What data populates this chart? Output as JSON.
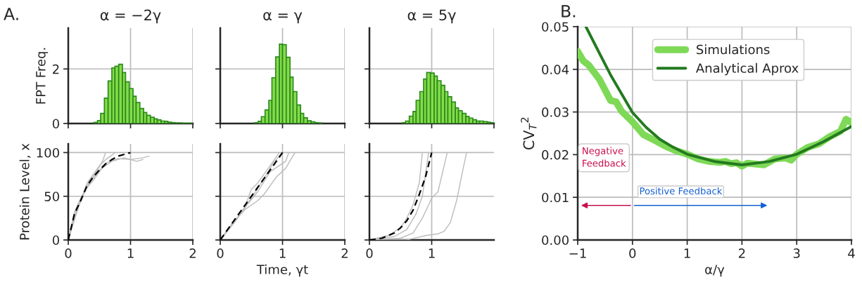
{
  "chart_data": [
    {
      "type": "histogram",
      "title": "α = −2γ",
      "ylabel": "FPT Freq.",
      "annotations": [
        "A."
      ],
      "color": "#86dc48",
      "xlim": [
        0,
        2
      ],
      "xticks": [
        0,
        1,
        2
      ],
      "ylim": [
        0,
        3.5
      ],
      "yticks": [
        0,
        2
      ],
      "grid": true,
      "tick_labels": "y",
      "bins": [
        0.41,
        0.47,
        0.52,
        0.58,
        0.64,
        0.7,
        0.75,
        0.81,
        0.87,
        0.92,
        0.98,
        1.04,
        1.09,
        1.15,
        1.21,
        1.26,
        1.32,
        1.38,
        1.43,
        1.49,
        1.55,
        1.6,
        1.66,
        1.72,
        1.77,
        1.83,
        1.89,
        1.94,
        2.0
      ],
      "values": [
        0.04,
        0.11,
        0.37,
        0.93,
        1.56,
        2.04,
        2.1,
        2.17,
        1.87,
        1.53,
        1.28,
        1.0,
        0.77,
        0.55,
        0.4,
        0.3,
        0.23,
        0.17,
        0.13,
        0.09,
        0.08,
        0.05,
        0.03,
        0.02,
        0.02,
        0.01,
        0.01,
        0.01
      ]
    },
    {
      "type": "histogram",
      "title": "α = γ",
      "color": "#86dc48",
      "xlim": [
        0,
        2
      ],
      "xticks": [
        0,
        1,
        2
      ],
      "ylim": [
        0,
        3.5
      ],
      "yticks": [
        0,
        2
      ],
      "grid": true,
      "tick_labels": false,
      "bins": [
        0.55,
        0.61,
        0.66,
        0.72,
        0.78,
        0.83,
        0.89,
        0.95,
        1.0,
        1.06,
        1.12,
        1.17,
        1.23,
        1.29,
        1.34,
        1.4,
        1.46,
        1.52,
        1.57,
        1.63
      ],
      "values": [
        0.03,
        0.08,
        0.25,
        0.5,
        0.85,
        1.68,
        2.44,
        2.91,
        2.89,
        2.43,
        1.7,
        1.17,
        0.68,
        0.37,
        0.21,
        0.1,
        0.06,
        0.03,
        0.02
      ]
    },
    {
      "type": "histogram",
      "title": "α = 5γ",
      "color": "#86dc48",
      "xlim": [
        0,
        2
      ],
      "xticks": [
        0,
        1,
        2
      ],
      "ylim": [
        0,
        3.5
      ],
      "yticks": [
        0,
        2
      ],
      "grid": true,
      "tick_labels": false,
      "bins": [
        0.53,
        0.58,
        0.64,
        0.7,
        0.75,
        0.81,
        0.87,
        0.92,
        0.98,
        1.04,
        1.09,
        1.15,
        1.21,
        1.26,
        1.32,
        1.38,
        1.43,
        1.49,
        1.55,
        1.6,
        1.66,
        1.72,
        1.77,
        1.83,
        1.89,
        1.94,
        2.0
      ],
      "values": [
        0.03,
        0.09,
        0.27,
        0.44,
        0.85,
        1.17,
        1.63,
        1.87,
        1.85,
        1.74,
        1.57,
        1.4,
        1.17,
        0.98,
        0.79,
        0.57,
        0.47,
        0.37,
        0.26,
        0.2,
        0.14,
        0.09,
        0.09,
        0.07,
        0.05,
        0.03
      ]
    },
    {
      "type": "line",
      "ylabel": "Protein Level, x",
      "xlim": [
        0,
        2
      ],
      "xticks": [
        0,
        1,
        2
      ],
      "ylim": [
        0,
        110
      ],
      "yticks": [
        0,
        50,
        100
      ],
      "grid": true,
      "series": [
        {
          "color": "#bbbbbb",
          "x": [
            0,
            0.1,
            0.2,
            0.3,
            0.4,
            0.5,
            0.6,
            0.7,
            0.75
          ],
          "values": [
            0,
            28,
            44,
            65,
            75,
            85,
            92,
            97,
            100
          ]
        },
        {
          "color": "#bbbbbb",
          "x": [
            0,
            0.1,
            0.2,
            0.3,
            0.4,
            0.5,
            0.6,
            0.8,
            1.0,
            1.2,
            1.3
          ],
          "values": [
            0,
            32,
            48,
            60,
            68,
            78,
            88,
            93,
            92,
            94,
            96
          ]
        },
        {
          "color": "#bbbbbb",
          "x": [
            0,
            0.15,
            0.3,
            0.45,
            0.55,
            0.6
          ],
          "values": [
            0,
            38,
            62,
            78,
            90,
            100
          ]
        },
        {
          "color": "#bbbbbb",
          "x": [
            0,
            0.2,
            0.35,
            0.5,
            0.7,
            0.9,
            1.1,
            1.2
          ],
          "values": [
            0,
            46,
            66,
            80,
            90,
            94,
            90,
            92
          ]
        },
        {
          "color": "#000000",
          "line_style": "dashed",
          "x": [
            0,
            0.1,
            0.2,
            0.3,
            0.4,
            0.5,
            0.6,
            0.7,
            0.8,
            0.9,
            1.0
          ],
          "values": [
            0,
            30,
            45,
            62,
            72,
            80,
            87,
            92,
            96,
            98,
            100
          ]
        }
      ]
    },
    {
      "type": "line",
      "xlabel": "Time, γt",
      "xlim": [
        0,
        2
      ],
      "xticks": [
        0,
        1,
        2
      ],
      "ylim": [
        0,
        110
      ],
      "yticks": [
        0,
        50,
        100
      ],
      "grid": true,
      "tick_labels": "x",
      "series": [
        {
          "color": "#bbbbbb",
          "x": [
            0,
            0.2,
            0.4,
            0.5,
            0.6,
            0.8,
            0.95
          ],
          "values": [
            0,
            18,
            38,
            58,
            65,
            85,
            100
          ]
        },
        {
          "color": "#bbbbbb",
          "x": [
            0,
            0.2,
            0.4,
            0.6,
            0.7,
            0.9,
            1.05,
            1.2
          ],
          "values": [
            0,
            20,
            35,
            45,
            52,
            72,
            82,
            100
          ]
        },
        {
          "color": "#bbbbbb",
          "x": [
            0,
            0.3,
            0.5,
            0.7,
            0.85,
            1.0
          ],
          "values": [
            0,
            28,
            48,
            70,
            88,
            100
          ]
        },
        {
          "color": "#bbbbbb",
          "x": [
            0,
            0.25,
            0.45,
            0.6,
            0.8,
            1.05,
            1.1
          ],
          "values": [
            0,
            22,
            42,
            55,
            78,
            90,
            100
          ]
        },
        {
          "color": "#000000",
          "line_style": "dashed",
          "x": [
            0,
            1
          ],
          "values": [
            0,
            100
          ]
        }
      ]
    },
    {
      "type": "line",
      "xlim": [
        0,
        2
      ],
      "xticks": [
        0,
        1
      ],
      "ylim": [
        0,
        110
      ],
      "yticks": [
        0,
        50,
        100
      ],
      "grid": true,
      "tick_labels": "x",
      "series": [
        {
          "color": "#bbbbbb",
          "x": [
            0,
            0.3,
            0.5,
            0.6,
            0.7,
            0.8,
            0.85
          ],
          "values": [
            0,
            5,
            14,
            25,
            40,
            65,
            100
          ]
        },
        {
          "color": "#bbbbbb",
          "x": [
            0,
            0.4,
            0.6,
            0.75,
            0.85,
            0.95
          ],
          "values": [
            0,
            4,
            12,
            30,
            50,
            100
          ]
        },
        {
          "color": "#bbbbbb",
          "x": [
            0,
            0.5,
            0.7,
            0.85,
            0.95,
            1.0,
            1.1,
            1.25
          ],
          "values": [
            0,
            2,
            8,
            25,
            40,
            48,
            55,
            100
          ]
        },
        {
          "color": "#bbbbbb",
          "x": [
            0,
            0.6,
            0.9,
            1.1,
            1.2,
            1.3,
            1.4,
            1.5,
            1.56
          ],
          "values": [
            0,
            0,
            5,
            7,
            10,
            20,
            45,
            80,
            100
          ]
        },
        {
          "color": "#000000",
          "line_style": "dashed",
          "x": [
            0,
            0.2,
            0.4,
            0.5,
            0.6,
            0.7,
            0.8,
            0.9,
            1.0
          ],
          "values": [
            0,
            2,
            8,
            14,
            22,
            34,
            52,
            72,
            100
          ]
        }
      ]
    },
    {
      "type": "line",
      "xlabel": "α/γ",
      "ylabel": "CV$_{T}$$^{2}$",
      "annotations": [
        "B.",
        "Negative\nFeedback",
        "Positive Feedback"
      ],
      "xlim": [
        -1,
        4
      ],
      "xticks": [
        {
          "value": -1,
          "label": "−1"
        },
        0,
        1,
        2,
        3,
        4
      ],
      "ylim": [
        0,
        0.05
      ],
      "yticks": [
        {
          "value": 0,
          "label": "0.00"
        },
        {
          "value": 0.01,
          "label": "0.01"
        },
        {
          "value": 0.02,
          "label": "0.02"
        },
        {
          "value": 0.03,
          "label": "0.03"
        },
        {
          "value": 0.04,
          "label": "0.04"
        },
        {
          "value": 0.05,
          "label": "0.05"
        }
      ],
      "grid": true,
      "legend": "top",
      "series": [
        {
          "name": "Simulations",
          "color": "#7ed957",
          "x": [
            -1,
            -0.9,
            -0.8,
            -0.6,
            -0.4,
            -0.3,
            -0.2,
            0,
            0.2,
            0.4,
            0.6,
            0.8,
            1.0,
            1.2,
            1.4,
            1.6,
            1.7,
            1.8,
            1.9,
            2.0,
            2.1,
            2.4,
            2.6,
            2.8,
            2.9,
            3.0,
            3.2,
            3.4,
            3.6,
            3.8,
            3.9,
            4.0
          ],
          "values": [
            0.0442,
            0.042,
            0.041,
            0.0376,
            0.0327,
            0.0324,
            0.0302,
            0.0277,
            0.0247,
            0.0234,
            0.022,
            0.0209,
            0.0201,
            0.019,
            0.0184,
            0.0182,
            0.0184,
            0.0179,
            0.0181,
            0.0173,
            0.018,
            0.0176,
            0.019,
            0.0192,
            0.0187,
            0.0201,
            0.0217,
            0.0225,
            0.0242,
            0.0255,
            0.0283,
            0.0275
          ]
        },
        {
          "name": "Analytical Aprox",
          "color": "#237a1f",
          "x": [
            -0.85,
            -0.6,
            -0.4,
            -0.2,
            0,
            0.25,
            0.5,
            0.75,
            1,
            1.5,
            2,
            2.5,
            3,
            3.5,
            4
          ],
          "values": [
            0.05,
            0.0437,
            0.0387,
            0.0343,
            0.0299,
            0.0264,
            0.0236,
            0.0217,
            0.0201,
            0.0184,
            0.0176,
            0.0184,
            0.0201,
            0.0231,
            0.0266
          ]
        }
      ]
    }
  ]
}
